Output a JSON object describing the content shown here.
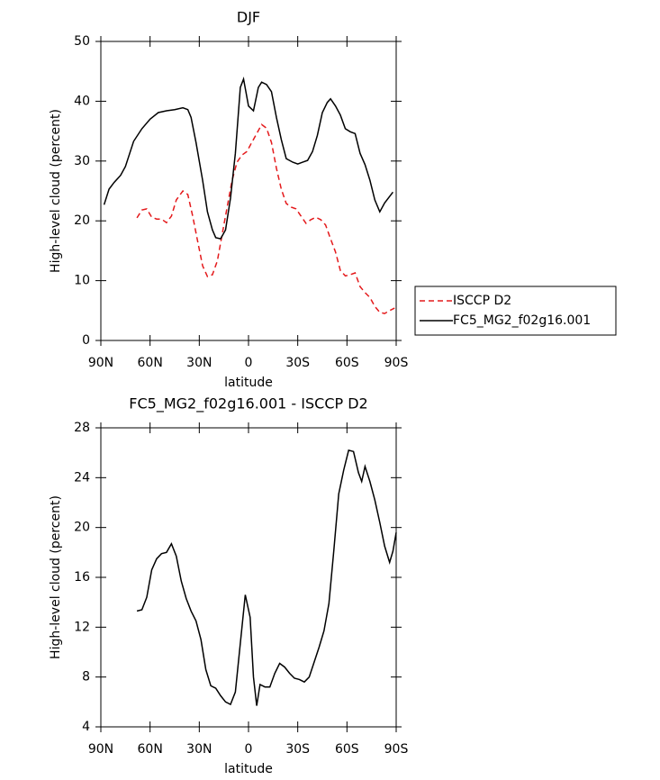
{
  "chart_data": [
    {
      "type": "line",
      "title": "DJF",
      "xlabel": "latitude",
      "ylabel": "High-level cloud (percent)",
      "xlim": [
        90,
        -90
      ],
      "ylim": [
        0,
        50
      ],
      "xticks": [
        {
          "value": 90,
          "label": "90N"
        },
        {
          "value": 60,
          "label": "60N"
        },
        {
          "value": 30,
          "label": "30N"
        },
        0,
        {
          "value": -30,
          "label": "30S"
        },
        {
          "value": -60,
          "label": "60S"
        },
        {
          "value": -90,
          "label": "90S"
        }
      ],
      "yticks": [
        0,
        10,
        20,
        30,
        40,
        50
      ],
      "legend": "right",
      "series": [
        {
          "name": "ISCCP D2",
          "color": "#e41a1c",
          "dash": true,
          "x": [
            68,
            65,
            62,
            59,
            56,
            53,
            50,
            47,
            44,
            40,
            37,
            34,
            31,
            28,
            25,
            22,
            19,
            16,
            13,
            10,
            7,
            4,
            1,
            -2,
            -5,
            -8,
            -11,
            -14,
            -17,
            -20,
            -23,
            -26,
            -29,
            -32,
            -35,
            -38,
            -41,
            -44,
            -47,
            -50,
            -53,
            -56,
            -59,
            -62,
            -65,
            -68,
            -71,
            -74,
            -77,
            -80,
            -83,
            -86,
            -89
          ],
          "values": [
            20.5,
            21.8,
            22.0,
            20.6,
            20.3,
            20.3,
            19.7,
            20.8,
            23.5,
            25.0,
            24.4,
            20.8,
            16.6,
            12.5,
            10.7,
            11.0,
            13.3,
            17.8,
            22.3,
            26.8,
            29.8,
            31.0,
            31.6,
            33.1,
            34.6,
            36.1,
            35.5,
            33.1,
            28.8,
            25.3,
            22.9,
            22.3,
            22.0,
            20.8,
            19.6,
            20.2,
            20.6,
            20.2,
            19.3,
            17.0,
            14.8,
            11.7,
            10.8,
            11.0,
            11.3,
            9.0,
            8.0,
            7.2,
            5.7,
            4.7,
            4.5,
            5.0,
            5.4
          ]
        },
        {
          "name": "FC5_MG2_f02g16.001",
          "color": "#000000",
          "dash": false,
          "x": [
            88,
            85,
            82,
            78,
            75,
            70,
            65,
            60,
            55,
            50,
            45,
            40,
            37,
            35,
            32,
            28,
            25,
            22,
            20,
            17,
            14,
            11,
            8,
            5,
            3,
            0,
            -3,
            -6,
            -8,
            -11,
            -14,
            -17,
            -20,
            -23,
            -27,
            -30,
            -33,
            -36,
            -39,
            -42,
            -45,
            -48,
            -50,
            -53,
            -56,
            -59,
            -62,
            -65,
            -68,
            -71,
            -74,
            -77,
            -80,
            -83,
            -88
          ],
          "values": [
            22.7,
            25.3,
            26.4,
            27.6,
            29.1,
            33.3,
            35.4,
            37.0,
            38.1,
            38.4,
            38.6,
            38.9,
            38.6,
            37.3,
            33.1,
            26.8,
            21.5,
            18.5,
            17.2,
            17.0,
            18.5,
            23.8,
            31.3,
            42.3,
            43.7,
            39.2,
            38.4,
            42.3,
            43.2,
            42.8,
            41.6,
            37.3,
            33.6,
            30.4,
            29.8,
            29.5,
            29.8,
            30.1,
            31.6,
            34.3,
            38.1,
            39.8,
            40.4,
            39.2,
            37.7,
            35.4,
            34.9,
            34.6,
            31.3,
            29.4,
            26.8,
            23.5,
            21.5,
            23.0,
            24.8
          ]
        }
      ]
    },
    {
      "type": "line",
      "title": "FC5_MG2_f02g16.001 - ISCCP D2",
      "xlabel": "latitude",
      "ylabel": "High-level cloud (percent)",
      "xlim": [
        90,
        -90
      ],
      "ylim": [
        4,
        28
      ],
      "xticks": [
        {
          "value": 90,
          "label": "90N"
        },
        {
          "value": 60,
          "label": "60N"
        },
        {
          "value": 30,
          "label": "30N"
        },
        0,
        {
          "value": -30,
          "label": "30S"
        },
        {
          "value": -60,
          "label": "60S"
        },
        {
          "value": -90,
          "label": "90S"
        }
      ],
      "yticks": [
        4,
        8,
        12,
        16,
        20,
        24,
        28
      ],
      "series": [
        {
          "color": "#000000",
          "dash": false,
          "x": [
            68,
            65,
            62,
            59,
            56,
            53,
            50,
            47,
            44,
            41,
            38,
            35,
            32,
            29,
            26,
            23,
            20,
            17,
            14,
            11,
            8,
            5,
            2,
            -1,
            -3,
            -5,
            -7,
            -10,
            -13,
            -16,
            -19,
            -22,
            -25,
            -28,
            -31,
            -34,
            -37,
            -40,
            -43,
            -46,
            -49,
            -52,
            -55,
            -58,
            -61,
            -64,
            -67,
            -69,
            -71,
            -74,
            -77,
            -80,
            -83,
            -86,
            -88,
            -90
          ],
          "values": [
            13.3,
            13.4,
            14.4,
            16.6,
            17.5,
            17.9,
            18.0,
            18.7,
            17.7,
            15.7,
            14.3,
            13.3,
            12.5,
            11.0,
            8.6,
            7.3,
            7.1,
            6.5,
            6.0,
            5.8,
            6.8,
            10.7,
            14.6,
            12.8,
            8.0,
            5.7,
            7.4,
            7.2,
            7.2,
            8.3,
            9.1,
            8.8,
            8.3,
            7.9,
            7.8,
            7.6,
            8.0,
            9.2,
            10.4,
            11.7,
            13.9,
            18.2,
            22.7,
            24.6,
            26.2,
            26.1,
            24.4,
            23.7,
            24.9,
            23.7,
            22.2,
            20.4,
            18.5,
            17.2,
            18.1,
            19.6
          ]
        }
      ]
    }
  ]
}
